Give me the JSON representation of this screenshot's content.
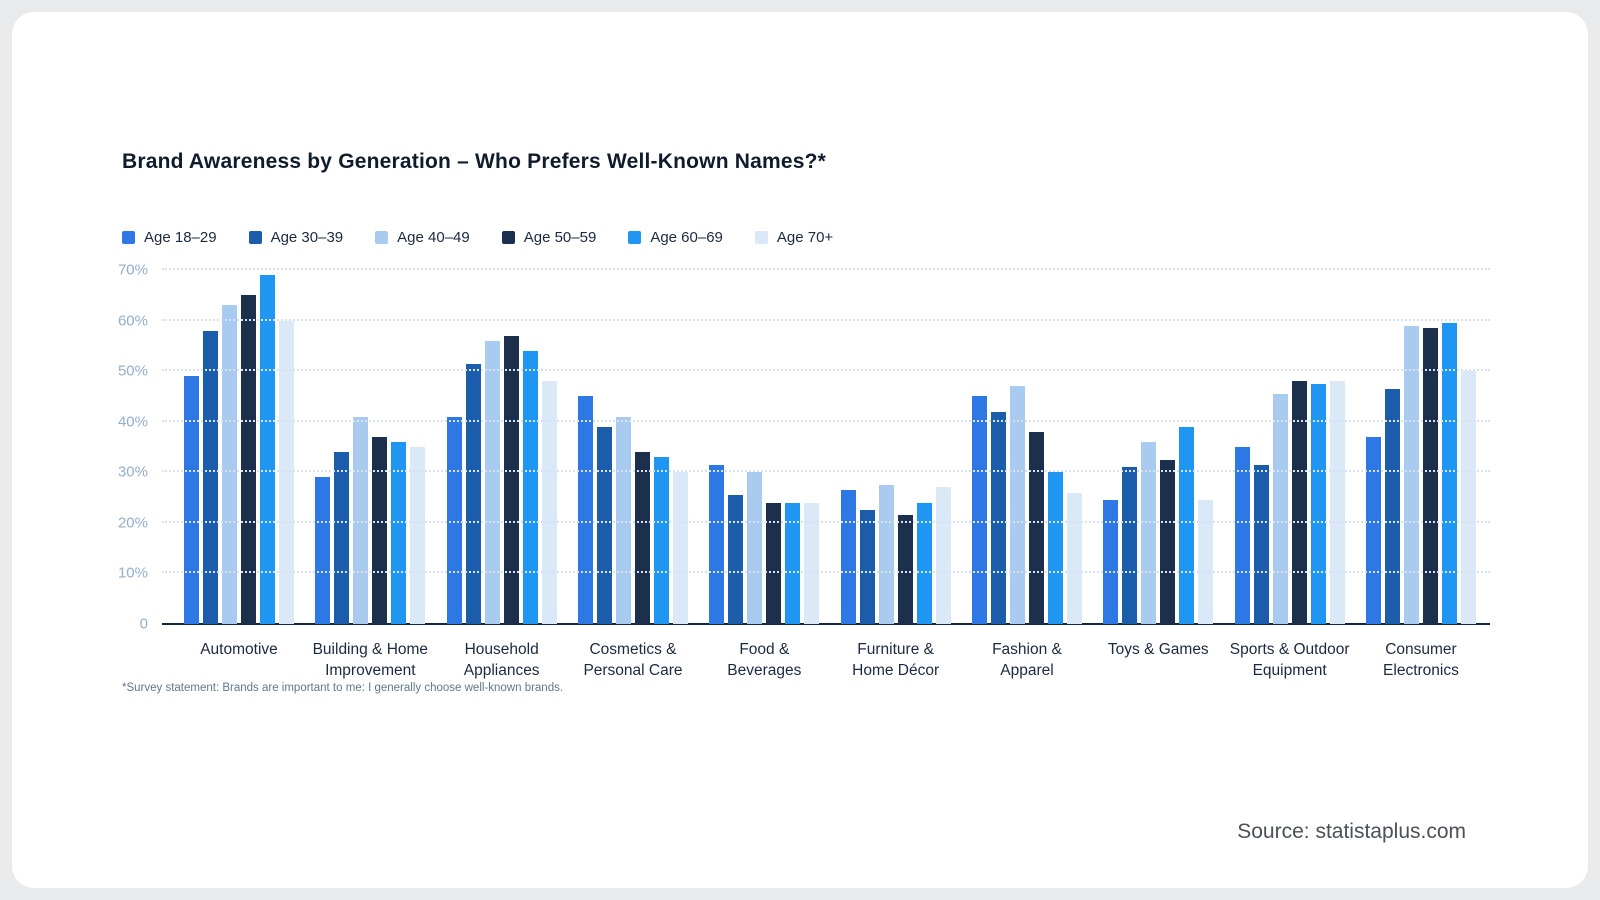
{
  "title": "Brand Awareness by Generation – Who Prefers Well-Known Names?*",
  "footnote": "*Survey statement: Brands are important to me: I generally choose well-known brands.",
  "source": "Source: statistaplus.com",
  "colors": {
    "card_background": "#ffffff",
    "page_background": "#e9eaeb",
    "axis_line": "#16263a",
    "gridline": "#d6e2f0",
    "tick_label": "#94aecb",
    "category_label": "#1b2a40"
  },
  "chart_data": {
    "type": "bar",
    "title": "Brand Awareness by Generation – Who Prefers Well-Known Names?*",
    "xlabel": "",
    "ylabel": "",
    "ylim": [
      0,
      70
    ],
    "yticks": [
      0,
      10,
      20,
      30,
      40,
      50,
      60,
      70
    ],
    "ytick_labels": [
      "0",
      "10%",
      "20%",
      "30%",
      "40%",
      "50%",
      "60%",
      "70%"
    ],
    "grid": true,
    "legend_position": "top",
    "categories": [
      "Automotive",
      "Building & Home\nImprovement",
      "Household\nAppliances",
      "Cosmetics &\nPersonal Care",
      "Food &\nBeverages",
      "Furniture &\nHome Décor",
      "Fashion &\nApparel",
      "Toys & Games",
      "Sports & Outdoor\nEquipment",
      "Consumer\nElectronics"
    ],
    "series": [
      {
        "name": "Age 18–29",
        "color": "#2e78e6",
        "values": [
          49,
          29,
          41,
          45,
          31.5,
          26.5,
          45,
          24.5,
          35,
          37
        ]
      },
      {
        "name": "Age 30–39",
        "color": "#1b5cab",
        "values": [
          58,
          34,
          51.5,
          39,
          25.5,
          22.5,
          42,
          31,
          31.5,
          46.5
        ]
      },
      {
        "name": "Age 40–49",
        "color": "#a9cbef",
        "values": [
          63,
          41,
          56,
          41,
          30,
          27.5,
          47,
          36,
          45.5,
          59
        ]
      },
      {
        "name": "Age 50–59",
        "color": "#1c2f4d",
        "values": [
          65,
          37,
          57,
          34,
          24,
          21.5,
          38,
          32.5,
          48,
          58.5
        ]
      },
      {
        "name": "Age 60–69",
        "color": "#1e96f2",
        "values": [
          69,
          36,
          54,
          33,
          24,
          24,
          30,
          39,
          47.5,
          59.5
        ]
      },
      {
        "name": "Age 70+",
        "color": "#dbe8f8",
        "values": [
          60,
          35,
          48,
          30,
          24,
          27,
          26,
          24.5,
          48,
          50
        ]
      }
    ]
  }
}
